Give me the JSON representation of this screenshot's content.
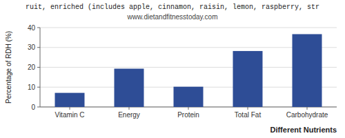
{
  "chart_data": {
    "type": "bar",
    "title": "ruit, enriched (includes apple, cinnamon, raisin, lemon, raspberry, str",
    "subtitle": "www.dietandfitnesstoday.com",
    "categories": [
      "Vitamin C",
      "Energy",
      "Protein",
      "Total Fat",
      "Carbohydrate"
    ],
    "values": [
      7.1,
      19.3,
      10.2,
      28.2,
      36.7
    ],
    "color": "#2e4d96",
    "xlabel": "Different Nutrients",
    "ylabel": "Percentage of RDH (%)",
    "ylim": [
      0,
      40
    ],
    "yticks": [
      0,
      10,
      20,
      30,
      40
    ],
    "grid": true
  }
}
